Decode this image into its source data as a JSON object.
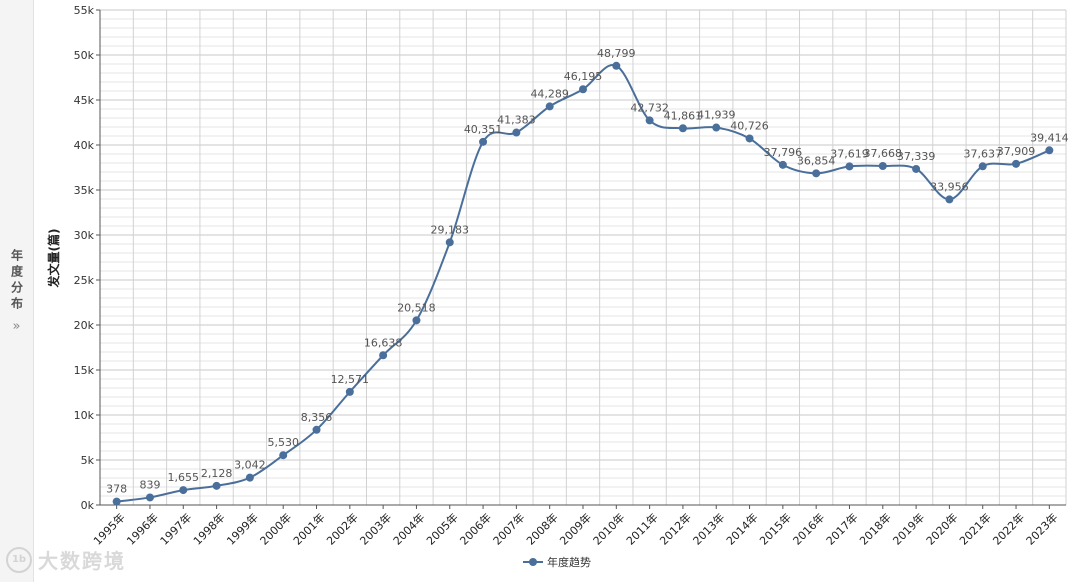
{
  "side_panel": {
    "title": "年度分布",
    "toggle_icon": "»"
  },
  "watermark": {
    "logo_text": "1b",
    "text": "大数跨境"
  },
  "chart_data": {
    "type": "line",
    "categories": [
      "1995年",
      "1996年",
      "1997年",
      "1998年",
      "1999年",
      "2000年",
      "2001年",
      "2002年",
      "2003年",
      "2004年",
      "2005年",
      "2006年",
      "2007年",
      "2008年",
      "2009年",
      "2010年",
      "2011年",
      "2012年",
      "2013年",
      "2014年",
      "2015年",
      "2016年",
      "2017年",
      "2018年",
      "2019年",
      "2020年",
      "2021年",
      "2022年",
      "2023年"
    ],
    "series": [
      {
        "name": "年度趋势",
        "values": [
          378,
          839,
          1655,
          2128,
          3042,
          5530,
          8356,
          12571,
          16638,
          20518,
          29183,
          40351,
          41383,
          44289,
          46195,
          48799,
          42732,
          41861,
          41939,
          40726,
          37796,
          36854,
          37619,
          37668,
          37339,
          33956,
          37637,
          37909,
          39414
        ],
        "labels": [
          "378",
          "839",
          "1,655",
          "2,128",
          "3,042",
          "5,530",
          "8,356",
          "12,571",
          "16,638",
          "20,518",
          "29,183",
          "40,351",
          "41,383",
          "44,289",
          "46,195",
          "48,799",
          "42,732",
          "41,861",
          "41,939",
          "40,726",
          "37,796",
          "36,854",
          "37,619",
          "37,668",
          "37,339",
          "33,956",
          "37,637",
          "37,909",
          "39,414"
        ],
        "color": "#4a6f9a"
      }
    ],
    "ylabel": "发文量(篇)",
    "xlabel": "",
    "ylim": [
      0,
      55000
    ],
    "yticks": [
      0,
      5000,
      10000,
      15000,
      20000,
      25000,
      30000,
      35000,
      40000,
      45000,
      50000,
      55000
    ],
    "ytick_labels": [
      "0k",
      "5k",
      "10k",
      "15k",
      "20k",
      "25k",
      "30k",
      "35k",
      "40k",
      "45k",
      "50k",
      "55k"
    ],
    "grid": true,
    "legend_position": "bottom-center"
  }
}
